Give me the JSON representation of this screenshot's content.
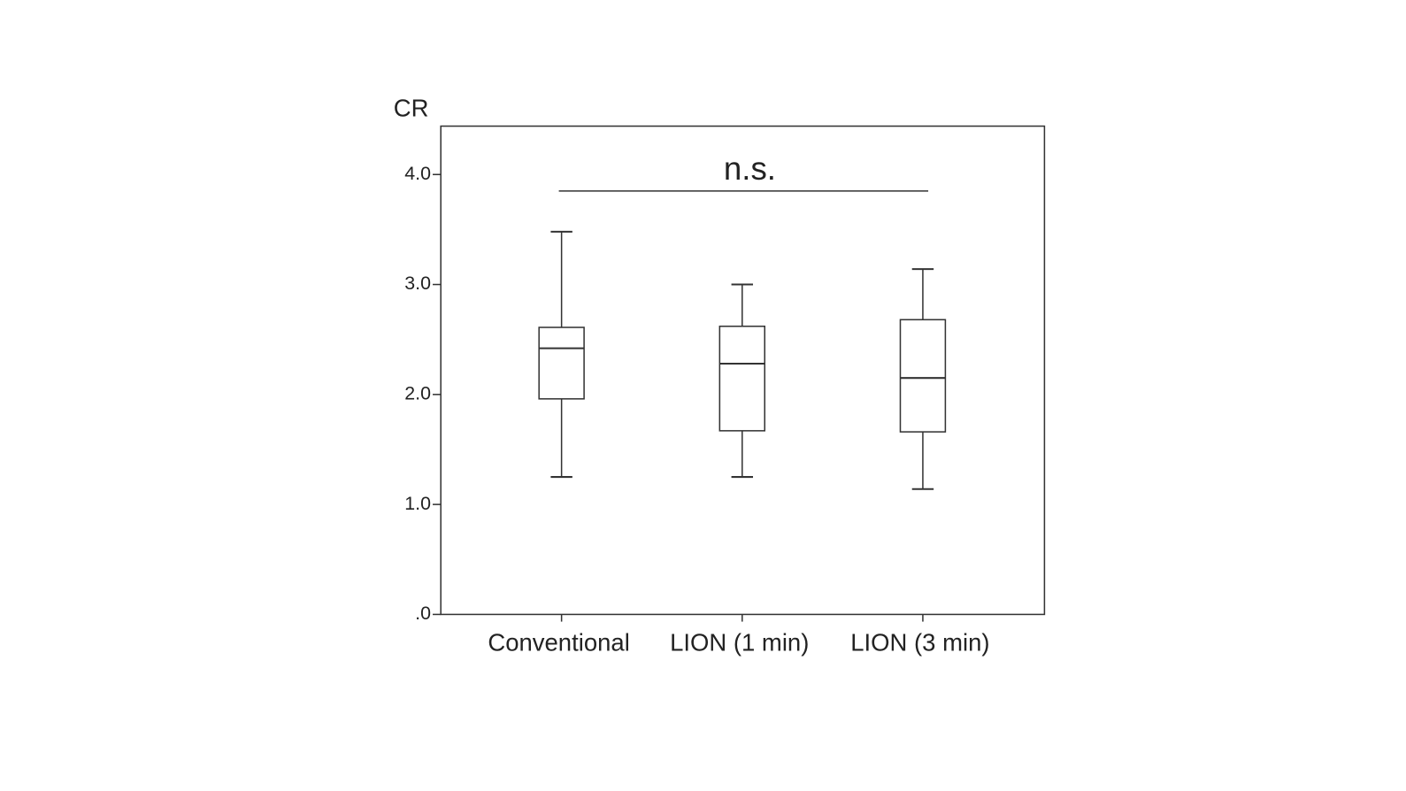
{
  "chart_data": {
    "type": "box",
    "y_label": "CR",
    "annotation": "n.s.",
    "categories": [
      "Conventional",
      "LION (1 min)",
      "LION (3 min)"
    ],
    "whisker_low": [
      1.25,
      1.25,
      1.14
    ],
    "q1": [
      1.96,
      1.67,
      1.66
    ],
    "median": [
      2.42,
      2.28,
      2.15
    ],
    "q3": [
      2.61,
      2.62,
      2.68
    ],
    "whisker_high": [
      3.48,
      3.0,
      3.14
    ],
    "color": "#333333",
    "ylim": [
      0,
      4.44
    ],
    "yticks": [
      {
        "value": 0,
        "label": ".0"
      },
      {
        "value": 1,
        "label": "1.0"
      },
      {
        "value": 2,
        "label": "2.0"
      },
      {
        "value": 3,
        "label": "3.0"
      },
      {
        "value": 4,
        "label": "4.0"
      }
    ]
  }
}
